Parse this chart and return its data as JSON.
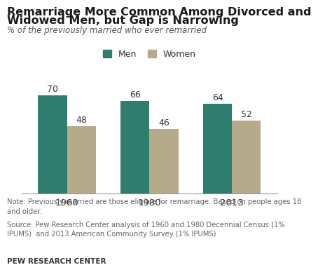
{
  "title_line1": "Remarriage More Common Among Divorced and",
  "title_line2": "Widowed Men, but Gap is Narrowing",
  "subtitle": "% of the previously married who ever remarried",
  "categories": [
    "1960",
    "1980",
    "2013"
  ],
  "men_values": [
    70,
    66,
    64
  ],
  "women_values": [
    48,
    46,
    52
  ],
  "men_color": "#2E7D6E",
  "women_color": "#B5AA8A",
  "bar_width": 0.35,
  "ylim": [
    0,
    80
  ],
  "note": "Note: Previously married are those eligible for remarriage. Based on people ages 18\nand older.",
  "source": "Source: Pew Research Center analysis of 1960 and 1980 Decennial Census (1%\nIPUMS)  and 2013 American Community Survey (1% IPUMS)",
  "footer": "PEW RESEARCH CENTER",
  "title_fontsize": 11.5,
  "subtitle_fontsize": 8.5,
  "legend_fontsize": 9,
  "label_fontsize": 9,
  "tick_fontsize": 9.5,
  "note_fontsize": 7.2,
  "footer_fontsize": 7.5
}
